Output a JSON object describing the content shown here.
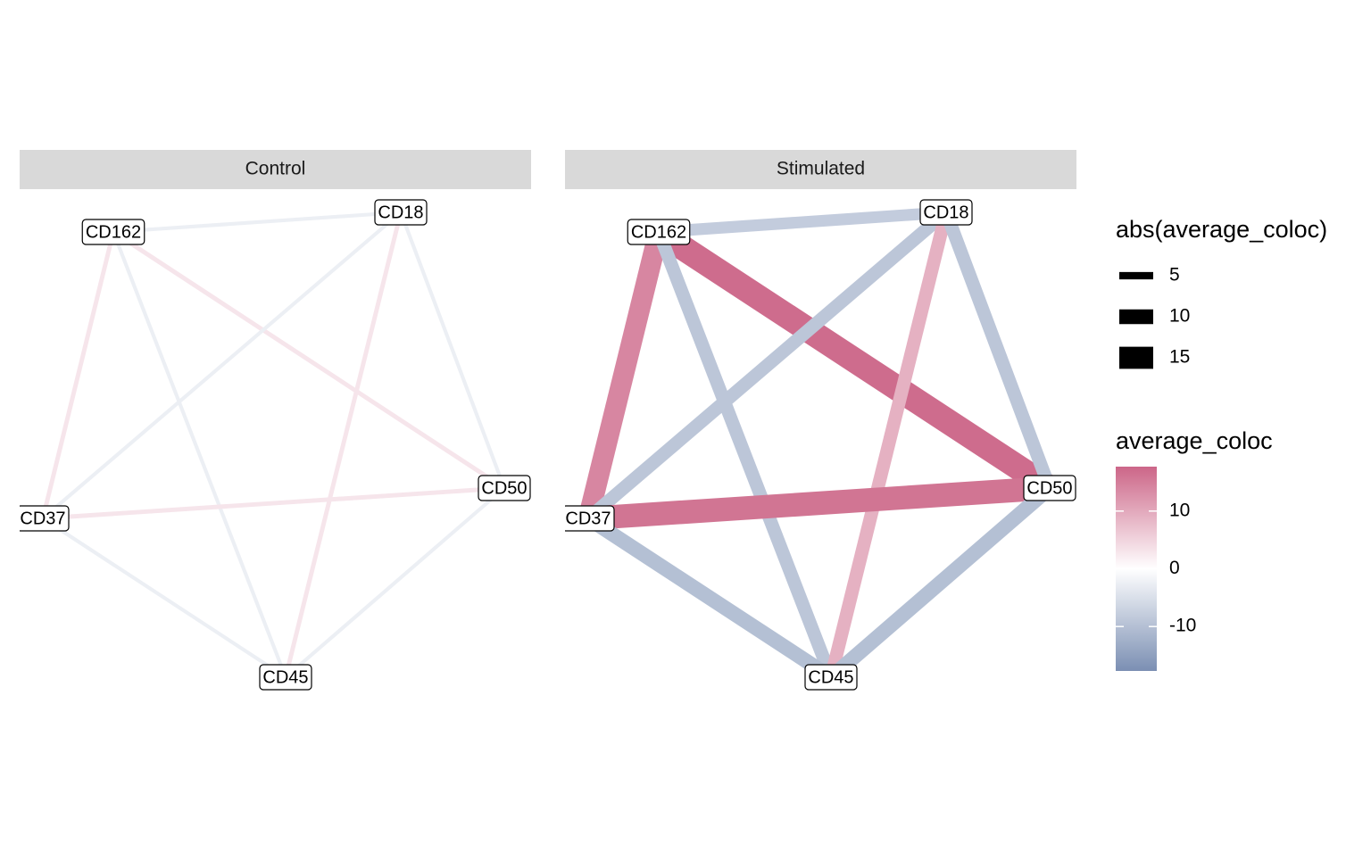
{
  "chart_data": {
    "type": "network",
    "nodes": [
      "CD162",
      "CD18",
      "CD50",
      "CD45",
      "CD37"
    ],
    "edges": [
      {
        "source": "CD162",
        "target": "CD18"
      },
      {
        "source": "CD162",
        "target": "CD50"
      },
      {
        "source": "CD162",
        "target": "CD37"
      },
      {
        "source": "CD162",
        "target": "CD45"
      },
      {
        "source": "CD18",
        "target": "CD37"
      },
      {
        "source": "CD18",
        "target": "CD45"
      },
      {
        "source": "CD18",
        "target": "CD50"
      },
      {
        "source": "CD37",
        "target": "CD50"
      },
      {
        "source": "CD37",
        "target": "CD45"
      },
      {
        "source": "CD50",
        "target": "CD45"
      }
    ],
    "panels": [
      {
        "title": "Control",
        "values": [
          -2.5,
          3,
          3,
          -2.5,
          -2.5,
          3,
          -2.5,
          3,
          -2.5,
          -2.5
        ]
      },
      {
        "title": "Stimulated",
        "values": [
          -8,
          17,
          14,
          -9,
          -9,
          9,
          -9,
          16,
          -10,
          -10
        ]
      }
    ],
    "size_legend": {
      "title": "abs(average_coloc)",
      "values": [
        5,
        10,
        15
      ]
    },
    "color_legend": {
      "title": "average_coloc",
      "limits": [
        -17.7,
        17.7
      ],
      "ticks": [
        -10,
        0,
        10
      ],
      "low": "#7b8fb3",
      "mid": "#ffffff",
      "high": "#cc6688"
    }
  }
}
